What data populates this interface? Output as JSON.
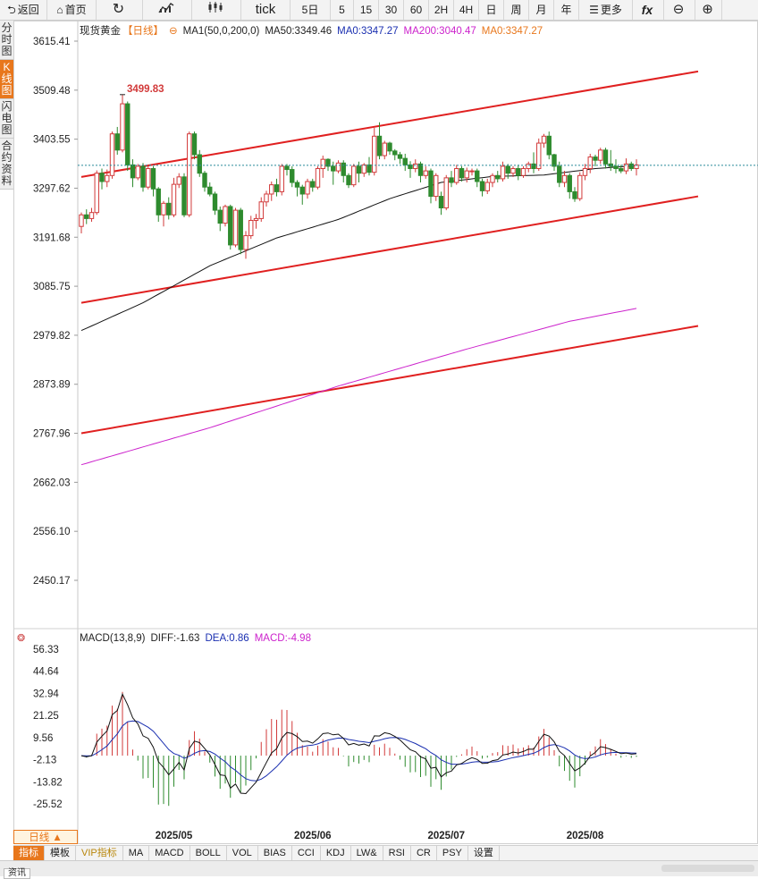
{
  "toolbar": {
    "items": [
      {
        "icon": "back-arrow-icon",
        "label": "返回"
      },
      {
        "icon": "home-icon",
        "label": "首页"
      },
      {
        "icon": "refresh-icon",
        "label": ""
      },
      {
        "icon": "bar-chart-icon",
        "label": ""
      },
      {
        "icon": "candlestick-icon",
        "label": ""
      },
      {
        "icon": "",
        "label": "tick"
      },
      {
        "icon": "",
        "label": "5日"
      },
      {
        "icon": "",
        "label": "5"
      },
      {
        "icon": "",
        "label": "15"
      },
      {
        "icon": "",
        "label": "30"
      },
      {
        "icon": "",
        "label": "60"
      },
      {
        "icon": "",
        "label": "2H"
      },
      {
        "icon": "",
        "label": "4H"
      },
      {
        "icon": "",
        "label": "日"
      },
      {
        "icon": "",
        "label": "周"
      },
      {
        "icon": "",
        "label": "月"
      },
      {
        "icon": "",
        "label": "年"
      },
      {
        "icon": "menu-icon",
        "label": "更多"
      },
      {
        "icon": "function-icon",
        "label": ""
      },
      {
        "icon": "zoom-out-icon",
        "label": ""
      },
      {
        "icon": "zoom-in-icon",
        "label": ""
      }
    ],
    "glyphs": {
      "back": "⮌",
      "home": "⌂",
      "refresh": "↻",
      "menu": "☰",
      "fx": "fx",
      "zoom_out": "⊖",
      "zoom_in": "⊕"
    }
  },
  "side_tabs": [
    {
      "label": "分时图",
      "active": false
    },
    {
      "label": "K线图",
      "active": true
    },
    {
      "label": "闪电图",
      "active": false
    },
    {
      "label": "合约资料",
      "active": false
    }
  ],
  "legend": {
    "symbol": "现货黄金",
    "period": "【日线】",
    "ma_settings": "MA1(50,0,200,0)",
    "ma50": "MA50:3349.46",
    "ma0_a": "MA0:3347.27",
    "ma200": "MA200:3040.47",
    "ma0_b": "MA0:3347.27"
  },
  "macd_legend": {
    "title": "MACD(13,8,9)",
    "diff": "DIFF:-1.63",
    "dea": "DEA:0.86",
    "macd": "MACD:-4.98"
  },
  "period_badge": "日线 ▲",
  "bottom_tabs": [
    {
      "label": "指标",
      "active": true,
      "vip": false
    },
    {
      "label": "模板",
      "active": false,
      "vip": false
    },
    {
      "label": "VIP指标",
      "active": false,
      "vip": true
    },
    {
      "label": "MA",
      "active": false,
      "vip": false
    },
    {
      "label": "MACD",
      "active": false,
      "vip": false
    },
    {
      "label": "BOLL",
      "active": false,
      "vip": false
    },
    {
      "label": "VOL",
      "active": false,
      "vip": false
    },
    {
      "label": "BIAS",
      "active": false,
      "vip": false
    },
    {
      "label": "CCI",
      "active": false,
      "vip": false
    },
    {
      "label": "KDJ",
      "active": false,
      "vip": false
    },
    {
      "label": "LW&",
      "active": false,
      "vip": false
    },
    {
      "label": "RSI",
      "active": false,
      "vip": false
    },
    {
      "label": "CR",
      "active": false,
      "vip": false
    },
    {
      "label": "PSY",
      "active": false,
      "vip": false
    },
    {
      "label": "设置",
      "active": false,
      "vip": false
    }
  ],
  "footer": {
    "info_tab": "资讯"
  },
  "colors": {
    "up": "#d23a3a",
    "down": "#2e8b2e",
    "channel": "#e02020",
    "ma50": "#111111",
    "ma200": "#cc22cc",
    "diff": "#111111",
    "dea": "#1a2fb0",
    "dashed": "#2b8a9a",
    "accent": "#e8771c"
  },
  "chart_data": [
    {
      "type": "candlestick",
      "title": "现货黄金 日线",
      "y_ticks": [
        3615.41,
        3509.48,
        3403.55,
        3297.62,
        3191.68,
        3085.75,
        2979.82,
        2873.89,
        2767.96,
        2662.03,
        2556.1,
        2450.17
      ],
      "x_ticks": [
        "2025/05",
        "2025/06",
        "2025/07",
        "2025/08"
      ],
      "annotation_high": "3499.83",
      "last_price": 3347,
      "candles": [
        [
          3215,
          3240,
          3200,
          3245
        ],
        [
          3240,
          3232,
          3220,
          3252
        ],
        [
          3232,
          3245,
          3225,
          3255
        ],
        [
          3245,
          3330,
          3240,
          3336
        ],
        [
          3330,
          3312,
          3295,
          3340
        ],
        [
          3312,
          3325,
          3300,
          3338
        ],
        [
          3325,
          3415,
          3318,
          3420
        ],
        [
          3415,
          3380,
          3370,
          3430
        ],
        [
          3380,
          3480,
          3375,
          3500
        ],
        [
          3480,
          3348,
          3335,
          3485
        ],
        [
          3348,
          3320,
          3300,
          3360
        ],
        [
          3320,
          3345,
          3315,
          3350
        ],
        [
          3345,
          3300,
          3290,
          3352
        ],
        [
          3300,
          3340,
          3295,
          3345
        ],
        [
          3340,
          3296,
          3280,
          3345
        ],
        [
          3296,
          3240,
          3225,
          3300
        ],
        [
          3240,
          3265,
          3215,
          3270
        ],
        [
          3265,
          3240,
          3230,
          3278
        ],
        [
          3240,
          3306,
          3235,
          3320
        ],
        [
          3306,
          3322,
          3298,
          3330
        ],
        [
          3322,
          3240,
          3235,
          3330
        ],
        [
          3240,
          3415,
          3235,
          3420
        ],
        [
          3415,
          3370,
          3360,
          3420
        ],
        [
          3370,
          3330,
          3322,
          3380
        ],
        [
          3330,
          3300,
          3290,
          3335
        ],
        [
          3300,
          3285,
          3280,
          3310
        ],
        [
          3285,
          3250,
          3240,
          3290
        ],
        [
          3250,
          3222,
          3205,
          3258
        ],
        [
          3222,
          3258,
          3215,
          3262
        ],
        [
          3258,
          3175,
          3165,
          3262
        ],
        [
          3175,
          3250,
          3170,
          3255
        ],
        [
          3250,
          3165,
          3155,
          3255
        ],
        [
          3165,
          3195,
          3145,
          3205
        ],
        [
          3195,
          3228,
          3188,
          3238
        ],
        [
          3228,
          3232,
          3210,
          3242
        ],
        [
          3232,
          3268,
          3225,
          3278
        ],
        [
          3268,
          3285,
          3258,
          3292
        ],
        [
          3285,
          3305,
          3270,
          3312
        ],
        [
          3305,
          3290,
          3280,
          3318
        ],
        [
          3290,
          3345,
          3282,
          3350
        ],
        [
          3345,
          3338,
          3325,
          3350
        ],
        [
          3338,
          3310,
          3300,
          3345
        ],
        [
          3310,
          3300,
          3280,
          3315
        ],
        [
          3300,
          3285,
          3262,
          3305
        ],
        [
          3285,
          3312,
          3275,
          3318
        ],
        [
          3312,
          3300,
          3290,
          3318
        ],
        [
          3300,
          3340,
          3295,
          3345
        ],
        [
          3340,
          3360,
          3320,
          3368
        ],
        [
          3360,
          3345,
          3335,
          3362
        ],
        [
          3345,
          3335,
          3305,
          3355
        ],
        [
          3335,
          3352,
          3330,
          3358
        ],
        [
          3352,
          3325,
          3310,
          3358
        ],
        [
          3325,
          3305,
          3298,
          3330
        ],
        [
          3305,
          3345,
          3300,
          3350
        ],
        [
          3345,
          3330,
          3310,
          3355
        ],
        [
          3330,
          3348,
          3322,
          3352
        ],
        [
          3348,
          3332,
          3325,
          3365
        ],
        [
          3332,
          3410,
          3325,
          3428
        ],
        [
          3410,
          3368,
          3360,
          3440
        ],
        [
          3368,
          3395,
          3360,
          3400
        ],
        [
          3395,
          3378,
          3370,
          3398
        ],
        [
          3378,
          3370,
          3358,
          3382
        ],
        [
          3370,
          3362,
          3350,
          3376
        ],
        [
          3362,
          3348,
          3335,
          3372
        ],
        [
          3348,
          3340,
          3320,
          3356
        ],
        [
          3340,
          3350,
          3332,
          3360
        ],
        [
          3350,
          3325,
          3310,
          3355
        ],
        [
          3325,
          3335,
          3318,
          3345
        ],
        [
          3335,
          3280,
          3265,
          3340
        ],
        [
          3280,
          3325,
          3270,
          3330
        ],
        [
          3280,
          3255,
          3240,
          3290
        ],
        [
          3255,
          3320,
          3250,
          3326
        ],
        [
          3320,
          3310,
          3300,
          3335
        ],
        [
          3310,
          3340,
          3305,
          3348
        ],
        [
          3340,
          3320,
          3312,
          3345
        ],
        [
          3320,
          3335,
          3310,
          3342
        ],
        [
          3335,
          3335,
          3325,
          3340
        ],
        [
          3335,
          3312,
          3300,
          3340
        ],
        [
          3312,
          3292,
          3280,
          3318
        ],
        [
          3292,
          3310,
          3285,
          3318
        ],
        [
          3310,
          3325,
          3300,
          3330
        ],
        [
          3325,
          3318,
          3310,
          3335
        ],
        [
          3318,
          3345,
          3312,
          3355
        ],
        [
          3345,
          3330,
          3318,
          3350
        ],
        [
          3330,
          3340,
          3322,
          3345
        ],
        [
          3340,
          3325,
          3315,
          3348
        ],
        [
          3325,
          3340,
          3320,
          3345
        ],
        [
          3340,
          3350,
          3332,
          3355
        ],
        [
          3350,
          3340,
          3330,
          3375
        ],
        [
          3340,
          3395,
          3335,
          3405
        ],
        [
          3395,
          3410,
          3385,
          3415
        ],
        [
          3410,
          3370,
          3360,
          3420
        ],
        [
          3370,
          3345,
          3335,
          3372
        ],
        [
          3345,
          3310,
          3300,
          3355
        ],
        [
          3310,
          3325,
          3300,
          3335
        ],
        [
          3325,
          3290,
          3275,
          3330
        ],
        [
          3290,
          3275,
          3268,
          3300
        ],
        [
          3275,
          3325,
          3270,
          3332
        ],
        [
          3325,
          3340,
          3315,
          3350
        ],
        [
          3340,
          3365,
          3330,
          3372
        ],
        [
          3365,
          3358,
          3345,
          3370
        ],
        [
          3358,
          3380,
          3350,
          3385
        ],
        [
          3380,
          3350,
          3340,
          3385
        ],
        [
          3350,
          3345,
          3335,
          3380
        ],
        [
          3345,
          3340,
          3330,
          3360
        ],
        [
          3340,
          3335,
          3330,
          3348
        ],
        [
          3335,
          3350,
          3328,
          3362
        ],
        [
          3350,
          3340,
          3335,
          3355
        ],
        [
          3340,
          3348,
          3325,
          3360
        ]
      ],
      "ma50_anchor": [
        [
          0,
          2990
        ],
        [
          12,
          3050
        ],
        [
          25,
          3130
        ],
        [
          38,
          3190
        ],
        [
          50,
          3230
        ],
        [
          60,
          3275
        ],
        [
          70,
          3310
        ],
        [
          80,
          3323
        ],
        [
          90,
          3326
        ],
        [
          100,
          3340
        ],
        [
          109,
          3347
        ]
      ],
      "ma200_anchor": [
        [
          0,
          2700
        ],
        [
          25,
          2780
        ],
        [
          50,
          2870
        ],
        [
          75,
          2950
        ],
        [
          95,
          3010
        ],
        [
          109,
          3040
        ]
      ],
      "channels": [
        {
          "start": [
            0,
            3322
          ],
          "end": [
            120,
            3550
          ]
        },
        {
          "start": [
            0,
            3050
          ],
          "end": [
            120,
            3280
          ]
        },
        {
          "start": [
            0,
            2768
          ],
          "end": [
            120,
            3000
          ]
        }
      ]
    },
    {
      "type": "macd",
      "y_ticks": [
        56.33,
        44.64,
        32.94,
        21.25,
        9.56,
        -2.13,
        -13.82,
        -25.52
      ],
      "params": "MACD(13,8,9)"
    }
  ]
}
